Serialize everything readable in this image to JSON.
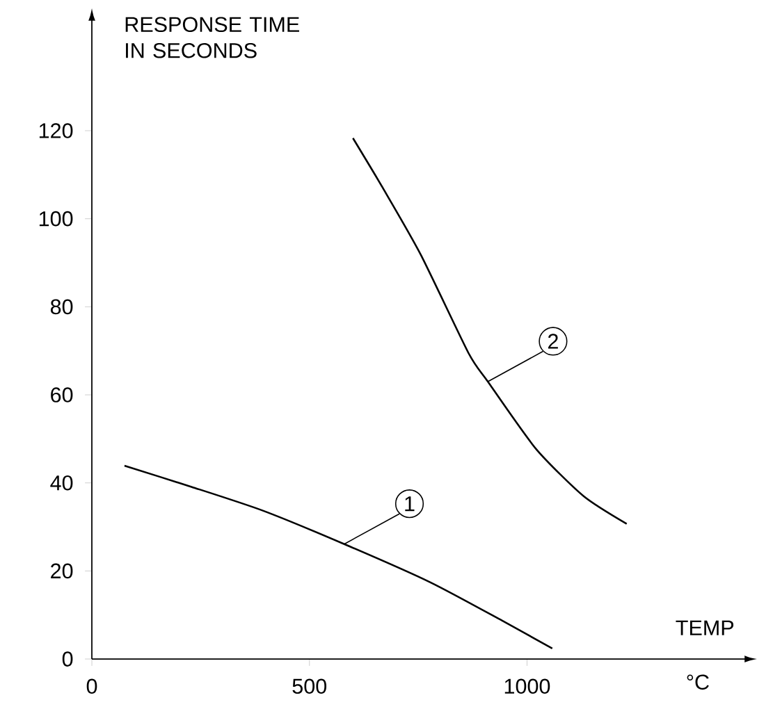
{
  "chart_data": {
    "type": "line",
    "xlabel": "TEMP",
    "ylabel": "RESPONSE TIME IN SECONDS",
    "xlim": [
      0,
      1500
    ],
    "ylim": [
      0,
      145
    ],
    "xticks": [
      0,
      500,
      1000
    ],
    "yticks": [
      0,
      20,
      40,
      60,
      80,
      100,
      120
    ],
    "grid": false,
    "marker": "none",
    "line_style": "solid",
    "series": [
      {
        "color": "#000000",
        "x": [
          75,
          229,
          393,
          580,
          778,
          943,
          1058
        ],
        "values": [
          43.9,
          39.1,
          33.7,
          26.1,
          17.4,
          8.7,
          2.4
        ]
      },
      {
        "color": "#000000",
        "x": [
          600,
          668,
          756,
          866,
          910,
          1020,
          1130,
          1229
        ],
        "values": [
          118.3,
          107.1,
          91.8,
          69.4,
          63,
          47.8,
          37,
          30.7
        ]
      }
    ],
    "annotations": [
      {
        "text": "1",
        "x": 580,
        "y": 26.1
      },
      {
        "text": "2",
        "x": 910,
        "y": 63
      },
      "°C"
    ]
  }
}
